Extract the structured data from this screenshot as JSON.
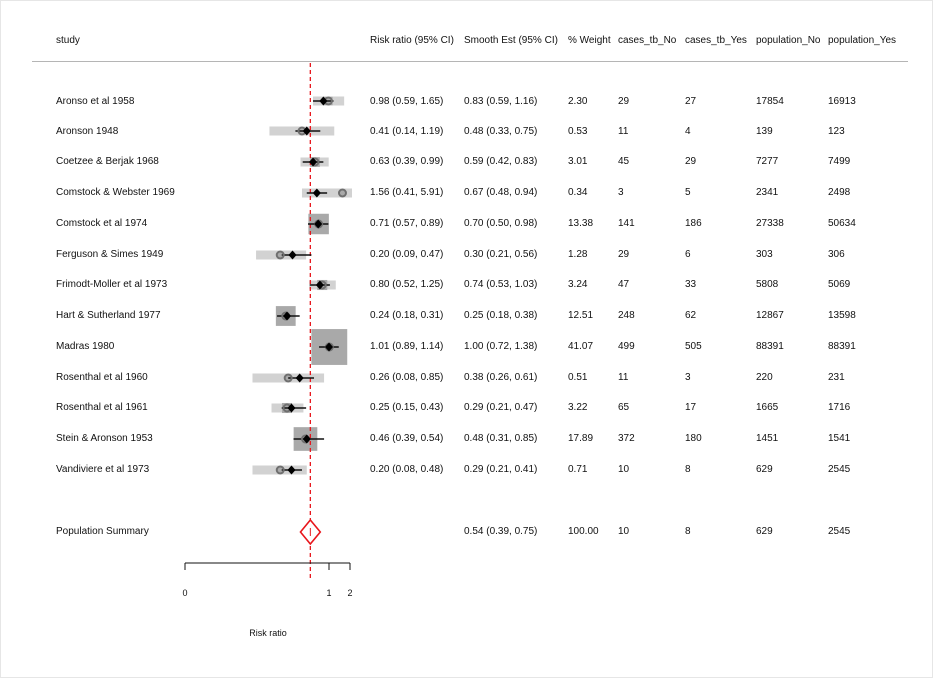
{
  "headers": {
    "study": "study",
    "rr": "Risk ratio (95% CI)",
    "smooth": "Smooth Est (95% CI)",
    "weight": "% Weight",
    "cases_no": "cases_tb_No",
    "cases_yes": "cases_tb_Yes",
    "pop_no": "population_No",
    "pop_yes": "population_Yes"
  },
  "rows": [
    {
      "study": "Aronso et al 1958",
      "rr": "0.98 (0.59, 1.65)",
      "smooth": "0.83 (0.59, 1.16)",
      "weight": "2.30",
      "cases_no": "29",
      "cases_yes": "27",
      "pop_no": "17854",
      "pop_yes": "16913"
    },
    {
      "study": "Aronson 1948",
      "rr": "0.41 (0.14, 1.19)",
      "smooth": "0.48 (0.33, 0.75)",
      "weight": "0.53",
      "cases_no": "11",
      "cases_yes": "4",
      "pop_no": "139",
      "pop_yes": "123"
    },
    {
      "study": "Coetzee & Berjak 1968",
      "rr": "0.63 (0.39, 0.99)",
      "smooth": "0.59 (0.42, 0.83)",
      "weight": "3.01",
      "cases_no": "45",
      "cases_yes": "29",
      "pop_no": "7277",
      "pop_yes": "7499"
    },
    {
      "study": "Comstock & Webster 1969",
      "rr": "1.56 (0.41, 5.91)",
      "smooth": "0.67 (0.48, 0.94)",
      "weight": "0.34",
      "cases_no": "3",
      "cases_yes": "5",
      "pop_no": "2341",
      "pop_yes": "2498"
    },
    {
      "study": "Comstock et al 1974",
      "rr": "0.71 (0.57, 0.89)",
      "smooth": "0.70 (0.50, 0.98)",
      "weight": "13.38",
      "cases_no": "141",
      "cases_yes": "186",
      "pop_no": "27338",
      "pop_yes": "50634"
    },
    {
      "study": "Ferguson & Simes 1949",
      "rr": "0.20 (0.09, 0.47)",
      "smooth": "0.30 (0.21, 0.56)",
      "weight": "1.28",
      "cases_no": "29",
      "cases_yes": "6",
      "pop_no": "303",
      "pop_yes": "306"
    },
    {
      "study": "Frimodt-Moller et al 1973",
      "rr": "0.80 (0.52, 1.25)",
      "smooth": "0.74 (0.53, 1.03)",
      "weight": "3.24",
      "cases_no": "47",
      "cases_yes": "33",
      "pop_no": "5808",
      "pop_yes": "5069"
    },
    {
      "study": "Hart & Sutherland 1977",
      "rr": "0.24 (0.18, 0.31)",
      "smooth": "0.25 (0.18, 0.38)",
      "weight": "12.51",
      "cases_no": "248",
      "cases_yes": "62",
      "pop_no": "12867",
      "pop_yes": "13598"
    },
    {
      "study": "Madras 1980",
      "rr": "1.01 (0.89, 1.14)",
      "smooth": "1.00 (0.72, 1.38)",
      "weight": "41.07",
      "cases_no": "499",
      "cases_yes": "505",
      "pop_no": "88391",
      "pop_yes": "88391"
    },
    {
      "study": "Rosenthal et al 1960",
      "rr": "0.26 (0.08, 0.85)",
      "smooth": "0.38 (0.26, 0.61)",
      "weight": "0.51",
      "cases_no": "11",
      "cases_yes": "3",
      "pop_no": "220",
      "pop_yes": "231"
    },
    {
      "study": "Rosenthal et al 1961",
      "rr": "0.25 (0.15, 0.43)",
      "smooth": "0.29 (0.21, 0.47)",
      "weight": "3.22",
      "cases_no": "65",
      "cases_yes": "17",
      "pop_no": "1665",
      "pop_yes": "1716"
    },
    {
      "study": "Stein & Aronson 1953",
      "rr": "0.46 (0.39, 0.54)",
      "smooth": "0.48 (0.31, 0.85)",
      "weight": "17.89",
      "cases_no": "372",
      "cases_yes": "180",
      "pop_no": "1451",
      "pop_yes": "1541"
    },
    {
      "study": "Vandiviere et al 1973",
      "rr": "0.20 (0.08, 0.48)",
      "smooth": "0.29 (0.21, 0.41)",
      "weight": "0.71",
      "cases_no": "10",
      "cases_yes": "8",
      "pop_no": "629",
      "pop_yes": "2545"
    }
  ],
  "summary": {
    "study": "Population Summary",
    "rr": "",
    "smooth": "0.54 (0.39, 0.75)",
    "weight": "100.00",
    "cases_no": "10",
    "cases_yes": "8",
    "pop_no": "629",
    "pop_yes": "2545"
  },
  "axis": {
    "label": "Risk ratio",
    "ticks": [
      "0",
      "1",
      "2"
    ]
  },
  "chart_data": {
    "type": "forest",
    "xlabel": "Risk ratio",
    "scale": "log",
    "tick_labels": [
      "0",
      "1",
      "2"
    ],
    "reference_line": 0.54,
    "reference_line_color": "#e8151b",
    "summary": {
      "est": 0.54,
      "lo": 0.39,
      "hi": 0.75,
      "color": "#e8151b"
    },
    "studies": [
      {
        "name": "Aronso et al 1958",
        "rr": 0.98,
        "rr_lo": 0.59,
        "rr_hi": 1.65,
        "smooth": 0.83,
        "sm_lo": 0.59,
        "sm_hi": 1.16,
        "weight": 2.3
      },
      {
        "name": "Aronson 1948",
        "rr": 0.41,
        "rr_lo": 0.14,
        "rr_hi": 1.19,
        "smooth": 0.48,
        "sm_lo": 0.33,
        "sm_hi": 0.75,
        "weight": 0.53
      },
      {
        "name": "Coetzee & Berjak 1968",
        "rr": 0.63,
        "rr_lo": 0.39,
        "rr_hi": 0.99,
        "smooth": 0.59,
        "sm_lo": 0.42,
        "sm_hi": 0.83,
        "weight": 3.01
      },
      {
        "name": "Comstock & Webster 1969",
        "rr": 1.56,
        "rr_lo": 0.41,
        "rr_hi": 5.91,
        "smooth": 0.67,
        "sm_lo": 0.48,
        "sm_hi": 0.94,
        "weight": 0.34
      },
      {
        "name": "Comstock et al 1974",
        "rr": 0.71,
        "rr_lo": 0.57,
        "rr_hi": 0.89,
        "smooth": 0.7,
        "sm_lo": 0.5,
        "sm_hi": 0.98,
        "weight": 13.38
      },
      {
        "name": "Ferguson & Simes 1949",
        "rr": 0.2,
        "rr_lo": 0.09,
        "rr_hi": 0.47,
        "smooth": 0.3,
        "sm_lo": 0.21,
        "sm_hi": 0.56,
        "weight": 1.28
      },
      {
        "name": "Frimodt-Moller et al 1973",
        "rr": 0.8,
        "rr_lo": 0.52,
        "rr_hi": 1.25,
        "smooth": 0.74,
        "sm_lo": 0.53,
        "sm_hi": 1.03,
        "weight": 3.24
      },
      {
        "name": "Hart & Sutherland 1977",
        "rr": 0.24,
        "rr_lo": 0.18,
        "rr_hi": 0.31,
        "smooth": 0.25,
        "sm_lo": 0.18,
        "sm_hi": 0.38,
        "weight": 12.51
      },
      {
        "name": "Madras 1980",
        "rr": 1.01,
        "rr_lo": 0.89,
        "rr_hi": 1.14,
        "smooth": 1.0,
        "sm_lo": 0.72,
        "sm_hi": 1.38,
        "weight": 41.07
      },
      {
        "name": "Rosenthal et al 1960",
        "rr": 0.26,
        "rr_lo": 0.08,
        "rr_hi": 0.85,
        "smooth": 0.38,
        "sm_lo": 0.26,
        "sm_hi": 0.61,
        "weight": 0.51
      },
      {
        "name": "Rosenthal et al 1961",
        "rr": 0.25,
        "rr_lo": 0.15,
        "rr_hi": 0.43,
        "smooth": 0.29,
        "sm_lo": 0.21,
        "sm_hi": 0.47,
        "weight": 3.22
      },
      {
        "name": "Stein & Aronson 1953",
        "rr": 0.46,
        "rr_lo": 0.39,
        "rr_hi": 0.54,
        "smooth": 0.48,
        "sm_lo": 0.31,
        "sm_hi": 0.85,
        "weight": 17.89
      },
      {
        "name": "Vandiviere et al 1973",
        "rr": 0.2,
        "rr_lo": 0.08,
        "rr_hi": 0.48,
        "smooth": 0.29,
        "sm_lo": 0.21,
        "sm_hi": 0.41,
        "weight": 0.71
      }
    ]
  }
}
